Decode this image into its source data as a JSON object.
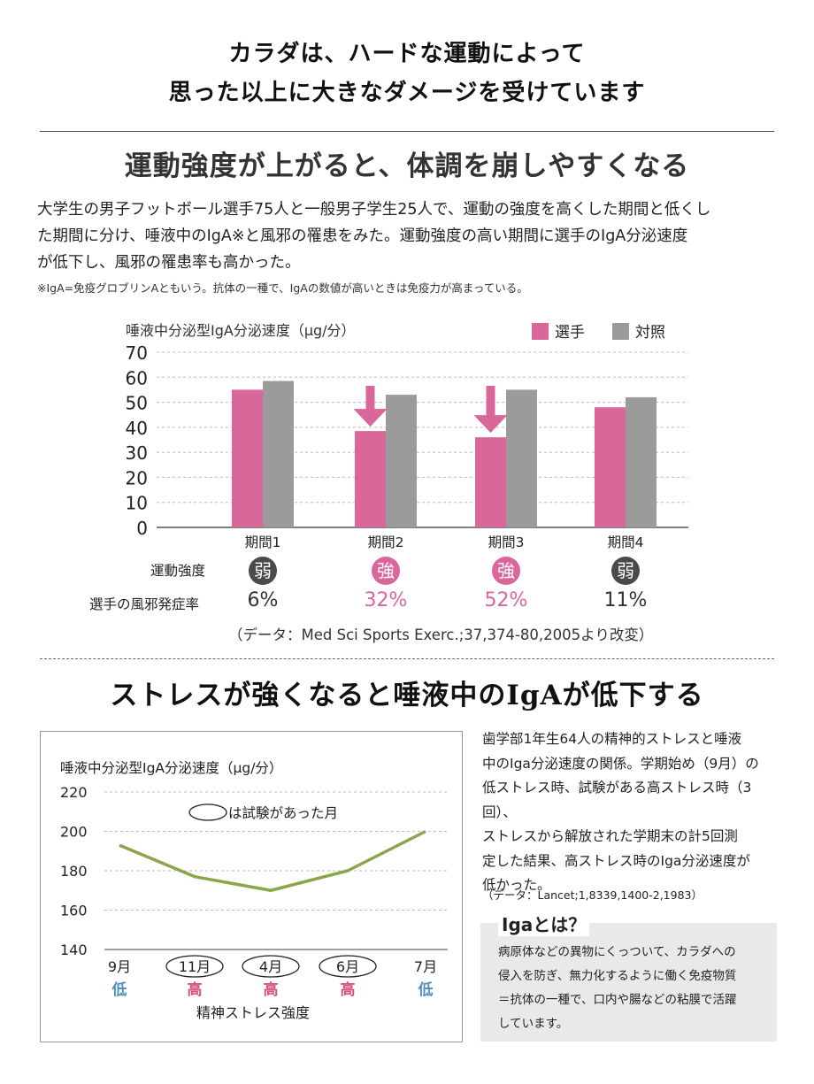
{
  "header": {
    "line1": "カラダは、ハードな運動によって",
    "line2": "思った以上に大きなダメージを受けています"
  },
  "section1": {
    "title": "運動強度が上がると、体調を崩しやすくなる",
    "text_lines": [
      "大学生の男子フットボール選手75人と一般男子学生25人で、運動の強度を高くした期間と低くし",
      "た期間に分け、唾液中のIgA※と風邪の罹患をみた。運動強度の高い期間に選手のIgA分泌速度",
      "が低下し、風邪の罹患率も高かった。"
    ],
    "note": "※IgA=免疫グロブリンAともいう。抗体の一種で、IgAの数値が高いときは免疫力が高まっている。",
    "intensity_label": "運動強度",
    "cold_rate_label": "選手の風邪発症率",
    "intensity": [
      "弱",
      "強",
      "強",
      "弱"
    ],
    "cold_rates": [
      "6%",
      "32%",
      "52%",
      "11%"
    ],
    "source": "（データ：Med Sci Sports Exerc.;37,374-80,2005より改変）"
  },
  "section2": {
    "title_part1": "ストレスが強くなると唾液中の",
    "title_iga": "IgA",
    "title_part2": "が低下する",
    "text_lines": [
      "歯学部1年生64人の精神的ストレスと唾液",
      "中のIga分泌速度の関係。学期始め（9月）の",
      "低ストレス時、試験がある高ストレス時（3回）、",
      "ストレスから解放された学期末の計5回測",
      "定した結果、高ストレス時のIga分泌速度が",
      "低かった。"
    ],
    "source": "（データ：Lancet;1,8339,1400-2,1983）",
    "iga_title": "Igaとは？",
    "iga_lines": [
      "病原体などの異物にくっついて、カラダへの",
      "侵入を防ぎ、無力化するように働く免疫物質",
      "＝抗体の一種で、口内や腸などの粘膜で活躍",
      "しています。"
    ]
  },
  "colors": {
    "athlete": "#d9679a",
    "control": "#9b9b9b",
    "line": "#8aa64a",
    "high": "#d94f7c",
    "low": "#4f8fc0",
    "weak_badge": "#4a4a4a"
  },
  "chart_data": [
    {
      "type": "bar",
      "title": "",
      "ylabel": "唾液中分泌型IgA分泌速度（μg/分）",
      "categories": [
        "期間1",
        "期間2",
        "期間3",
        "期間4"
      ],
      "series": [
        {
          "name": "選手",
          "values": [
            55,
            38.5,
            36,
            48
          ]
        },
        {
          "name": "対照",
          "values": [
            58.5,
            53,
            55,
            52
          ]
        }
      ],
      "ylim": [
        0,
        70
      ],
      "yticks": [
        0,
        10,
        20,
        30,
        40,
        50,
        60,
        70
      ],
      "arrows_on": [
        "期間2",
        "期間3"
      ],
      "legend_position": "top-right",
      "grid": "horizontal"
    },
    {
      "type": "line",
      "title": "",
      "ylabel": "唾液中分泌型IgA分泌速度（μg/分）",
      "xlabel": "精神ストレス強度",
      "categories": [
        "9月",
        "11月",
        "4月",
        "6月",
        "7月"
      ],
      "stress_levels": [
        "低",
        "高",
        "高",
        "高",
        "低"
      ],
      "exam_months": [
        "11月",
        "4月",
        "6月"
      ],
      "values": [
        193,
        177,
        170,
        180,
        200
      ],
      "ylim": [
        140,
        220
      ],
      "yticks": [
        140,
        160,
        180,
        200,
        220
      ],
      "legend_note": "は試験があった月",
      "grid": "horizontal"
    }
  ]
}
